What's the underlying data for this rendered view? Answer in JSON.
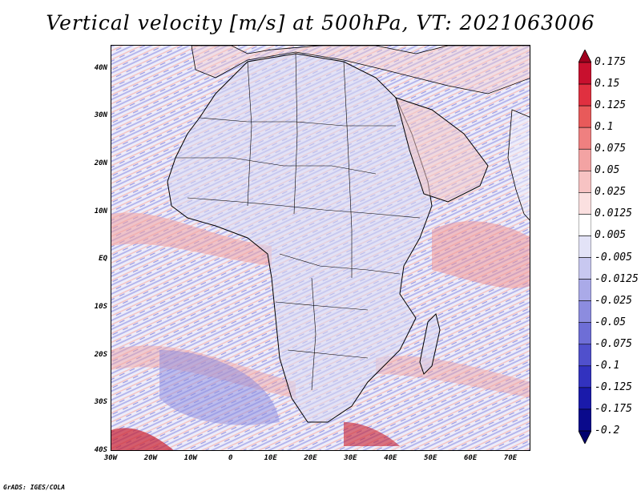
{
  "title": "Vertical velocity [m/s] at 500hPa, VT: 2021063006",
  "credit": "GrADS: IGES/COLA",
  "map": {
    "lat_labels": [
      "40N",
      "30N",
      "20N",
      "10N",
      "EQ",
      "10S",
      "20S",
      "30S",
      "40S"
    ],
    "lon_labels": [
      "30W",
      "20W",
      "10W",
      "0",
      "10E",
      "20E",
      "30E",
      "40E",
      "50E",
      "60E",
      "70E"
    ],
    "lat_range": [
      -40,
      45
    ],
    "lon_range": [
      -30,
      75
    ]
  },
  "colorbar": {
    "labels": [
      "0.175",
      "0.15",
      "0.125",
      "0.1",
      "0.075",
      "0.05",
      "0.025",
      "0.0125",
      "0.005",
      "-0.005",
      "-0.0125",
      "-0.025",
      "-0.05",
      "-0.075",
      "-0.1",
      "-0.125",
      "-0.175",
      "-0.2"
    ],
    "colors": [
      "#a0001e",
      "#c8102e",
      "#e03040",
      "#e85a5a",
      "#ef8080",
      "#f3a3a3",
      "#f7c3c3",
      "#fbe0e0",
      "#ffffff",
      "#e3e3f7",
      "#c8c8f0",
      "#aaaae8",
      "#8c8cdf",
      "#6e6ed6",
      "#5050cc",
      "#3232bf",
      "#1a1aaa",
      "#0a0a8c",
      "#00006e"
    ]
  }
}
